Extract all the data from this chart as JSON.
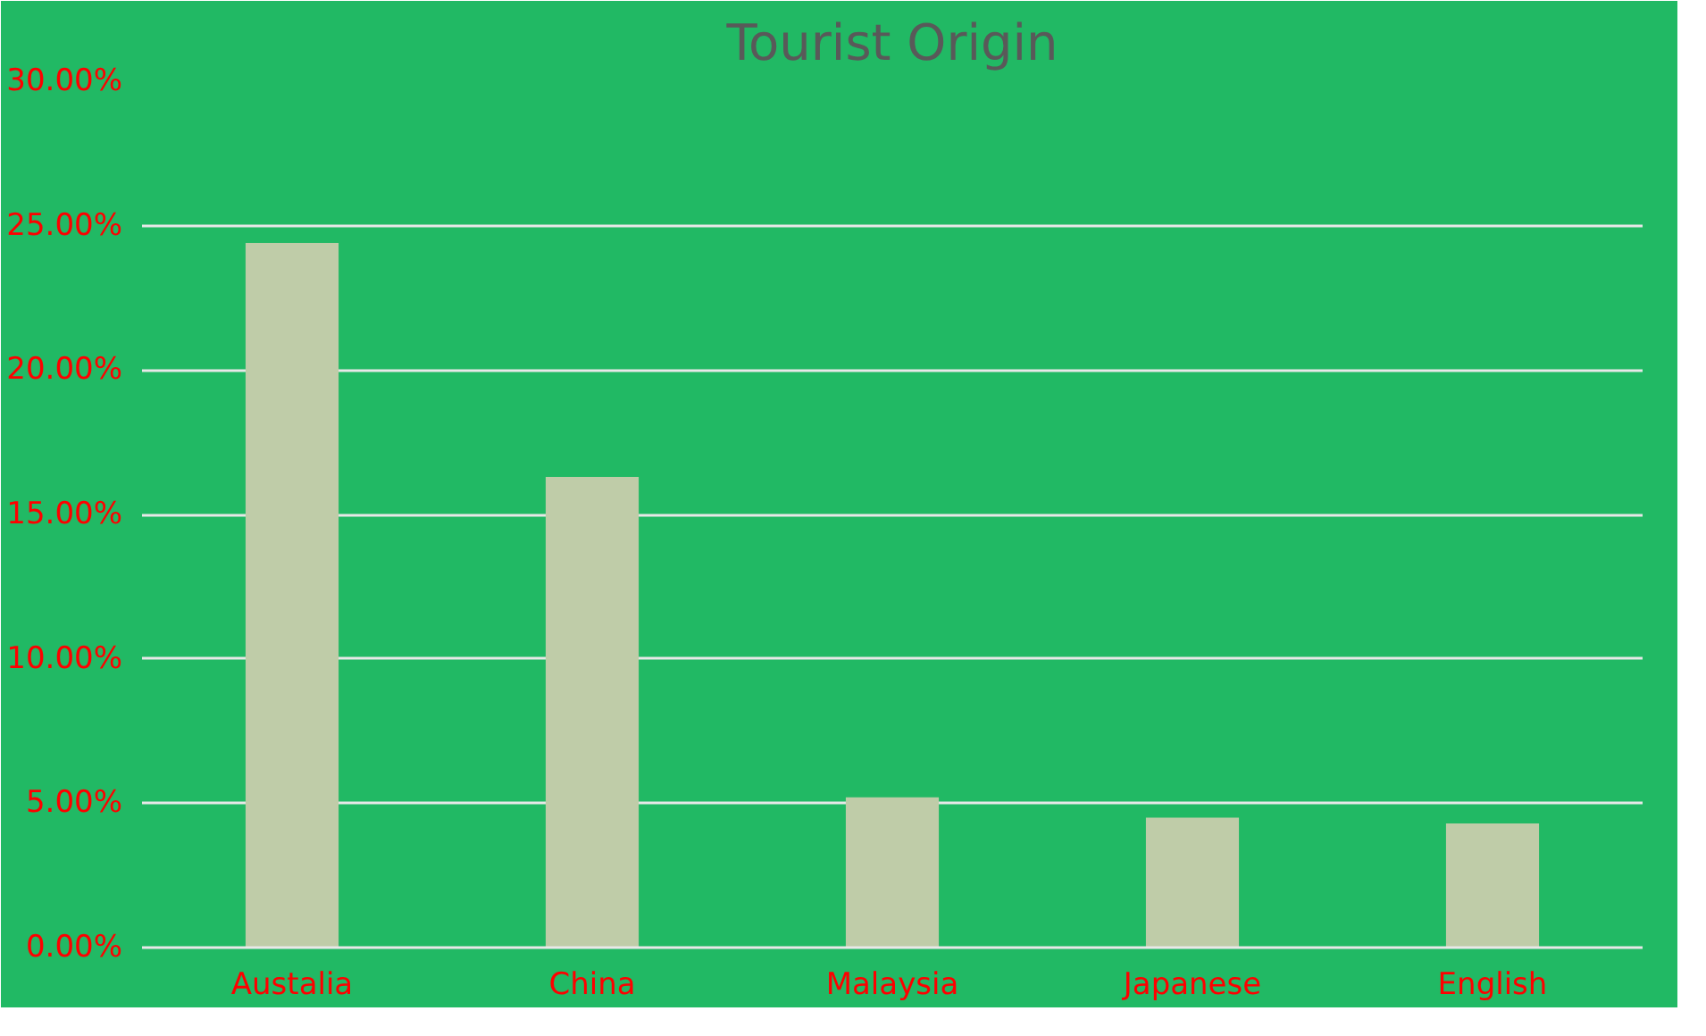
{
  "chart_data": {
    "type": "bar",
    "title": "Tourist Origin",
    "categories": [
      "Austalia",
      "China",
      "Malaysia",
      "Japanese",
      "English"
    ],
    "values": [
      24.4,
      16.3,
      5.2,
      4.5,
      4.3
    ],
    "color": "#bfcca8",
    "ylim": [
      0,
      30
    ],
    "yticks": [
      {
        "value": 0,
        "label": "0.00%"
      },
      {
        "value": 5,
        "label": "5.00%"
      },
      {
        "value": 10,
        "label": "10.00%"
      },
      {
        "value": 15,
        "label": "15.00%"
      },
      {
        "value": 20,
        "label": "20.00%"
      },
      {
        "value": 25,
        "label": "25.00%"
      },
      {
        "value": 30,
        "label": "30.00%"
      }
    ],
    "grid": "y"
  }
}
